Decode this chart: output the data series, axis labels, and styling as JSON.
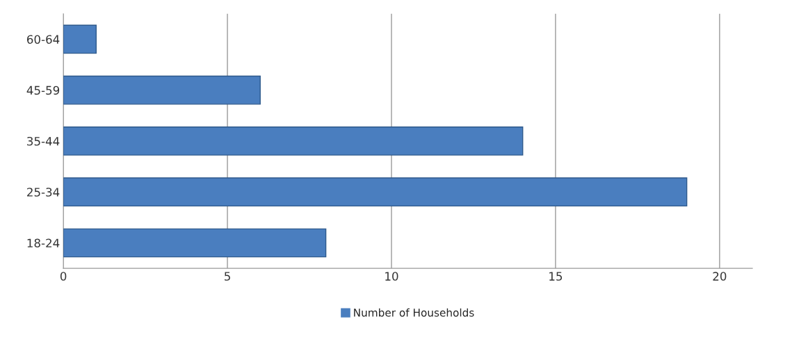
{
  "chart_data": {
    "type": "bar",
    "orientation": "horizontal",
    "categories": [
      "60-64",
      "45-59",
      "35-44",
      "25-34",
      "18-24"
    ],
    "series": [
      {
        "name": "Number of Households",
        "color": "#4a7ebf",
        "values": [
          1,
          6,
          14,
          19,
          8
        ]
      }
    ],
    "xlim": [
      0,
      21
    ],
    "xticks": [
      0,
      5,
      10,
      15,
      20
    ],
    "grid": "x",
    "legend": "bottom"
  }
}
